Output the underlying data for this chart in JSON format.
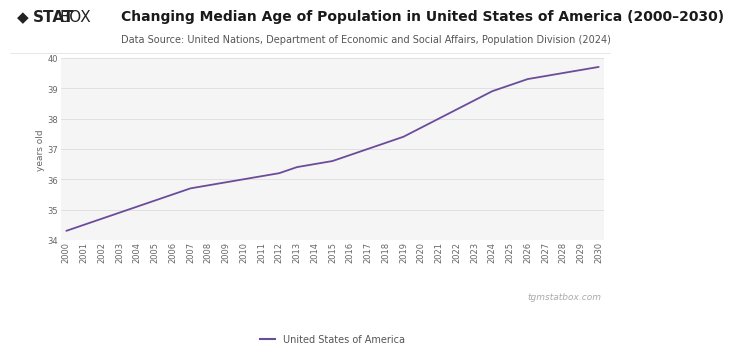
{
  "title": "Changing Median Age of Population in United States of America (2000–2030)",
  "subtitle": "Data Source: United Nations, Department of Economic and Social Affairs, Population Division (2024)",
  "ylabel": "years old",
  "legend_label": "United States of America",
  "line_color": "#6b4c9a",
  "background_color": "#ffffff",
  "plot_bg_color": "#f5f5f5",
  "years": [
    2000,
    2001,
    2002,
    2003,
    2004,
    2005,
    2006,
    2007,
    2008,
    2009,
    2010,
    2011,
    2012,
    2013,
    2014,
    2015,
    2016,
    2017,
    2018,
    2019,
    2020,
    2021,
    2022,
    2023,
    2024,
    2025,
    2026,
    2027,
    2028,
    2029,
    2030
  ],
  "values": [
    34.3,
    34.5,
    34.7,
    34.9,
    35.1,
    35.3,
    35.5,
    35.7,
    35.8,
    35.9,
    36.0,
    36.1,
    36.2,
    36.4,
    36.5,
    36.6,
    36.8,
    37.0,
    37.2,
    37.4,
    37.7,
    38.0,
    38.3,
    38.6,
    38.9,
    39.1,
    39.3,
    39.4,
    39.5,
    39.6,
    39.7
  ],
  "ylim": [
    34,
    40
  ],
  "yticks": [
    34,
    35,
    36,
    37,
    38,
    39,
    40
  ],
  "grid_color": "#d8d8d8",
  "tick_label_color": "#666666",
  "title_fontsize": 10,
  "subtitle_fontsize": 7,
  "axis_label_fontsize": 6.5,
  "tick_fontsize": 6,
  "legend_fontsize": 7,
  "footer_text": "tgmstatbox.com",
  "footer_color": "#aaaaaa",
  "logo_color": "#222222"
}
